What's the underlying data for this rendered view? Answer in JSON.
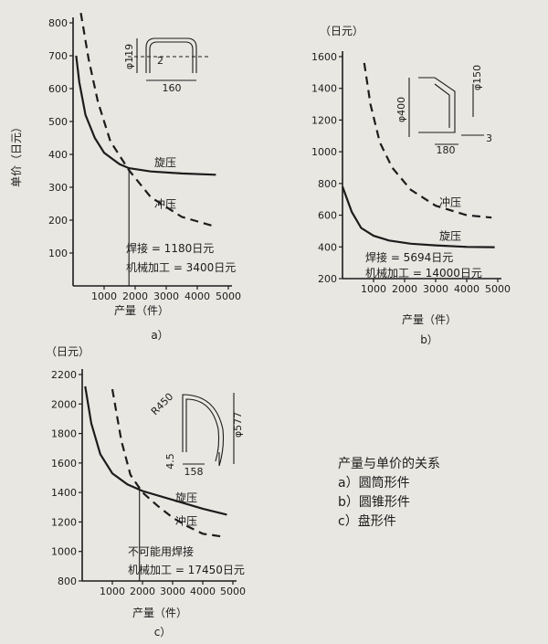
{
  "caption": {
    "title": "产量与单价的关系",
    "items": [
      "a）圆筒形件",
      "b）圆锥形件",
      "c）盘形件"
    ]
  },
  "chart_data": [
    {
      "type": "line",
      "panel_label": "a）",
      "ylabel": "单价（日元）",
      "xlabel": "产量（件）",
      "xlim": [
        0,
        5000
      ],
      "ylim": [
        0,
        800
      ],
      "xticks": [
        1000,
        2000,
        3000,
        4000,
        5000
      ],
      "yticks": [
        100,
        200,
        300,
        400,
        500,
        600,
        700,
        800
      ],
      "series": [
        {
          "name": "旋压",
          "style": "solid",
          "x": [
            100,
            200,
            400,
            700,
            1000,
            1500,
            1800,
            2500,
            3500,
            4600
          ],
          "y": [
            700,
            620,
            520,
            450,
            405,
            370,
            358,
            348,
            342,
            338
          ]
        },
        {
          "name": "冲压",
          "style": "dashed",
          "x": [
            250,
            500,
            800,
            1200,
            1800,
            2500,
            3500,
            4600
          ],
          "y": [
            830,
            690,
            560,
            440,
            352,
            270,
            210,
            180
          ]
        }
      ],
      "annotations": [
        "焊接 = 1180日元",
        "机械加工 = 3400日元"
      ],
      "sketch_dims": [
        "φ119",
        "2",
        "160"
      ]
    },
    {
      "type": "line",
      "panel_label": "b）",
      "ylabel": "（日元）",
      "xlabel": "产量（件）",
      "xlim": [
        0,
        5000
      ],
      "ylim": [
        200,
        1600
      ],
      "xticks": [
        1000,
        2000,
        3000,
        4000,
        5000
      ],
      "yticks": [
        200,
        400,
        600,
        800,
        1000,
        1200,
        1400,
        1600
      ],
      "series": [
        {
          "name": "冲压",
          "style": "dashed",
          "x": [
            700,
            900,
            1200,
            1600,
            2200,
            3000,
            4000,
            4800
          ],
          "y": [
            1560,
            1300,
            1060,
            900,
            760,
            660,
            600,
            585
          ]
        },
        {
          "name": "旋压",
          "style": "solid",
          "x": [
            0,
            300,
            600,
            1000,
            1500,
            2200,
            3000,
            4000,
            4900
          ],
          "y": [
            780,
            620,
            520,
            470,
            440,
            420,
            410,
            400,
            398
          ]
        }
      ],
      "annotations": [
        "焊接 = 5694日元",
        "机械加工 = 14000日元"
      ],
      "sketch_dims": [
        "φ150",
        "φ400",
        "180",
        "3"
      ]
    },
    {
      "type": "line",
      "panel_label": "c）",
      "ylabel": "（日元）",
      "xlabel": "产量（件）",
      "xlim": [
        0,
        5000
      ],
      "ylim": [
        800,
        2200
      ],
      "xticks": [
        1000,
        2000,
        3000,
        4000,
        5000
      ],
      "yticks": [
        800,
        1000,
        1200,
        1400,
        1600,
        1800,
        2000,
        2200
      ],
      "series": [
        {
          "name": "旋压",
          "style": "solid",
          "x": [
            100,
            300,
            600,
            1000,
            1500,
            2000,
            3000,
            4000,
            4800
          ],
          "y": [
            2120,
            1870,
            1660,
            1530,
            1455,
            1410,
            1350,
            1290,
            1250
          ]
        },
        {
          "name": "冲压",
          "style": "dashed",
          "x": [
            1000,
            1300,
            1600,
            2000,
            2500,
            3000,
            3500,
            4000,
            4700
          ],
          "y": [
            2100,
            1750,
            1520,
            1400,
            1310,
            1230,
            1170,
            1120,
            1100
          ]
        }
      ],
      "annotations": [
        "不可能用焊接",
        "机械加工 = 17450日元"
      ],
      "sketch_dims": [
        "R450",
        "φ577",
        "4.5",
        "158"
      ]
    }
  ]
}
